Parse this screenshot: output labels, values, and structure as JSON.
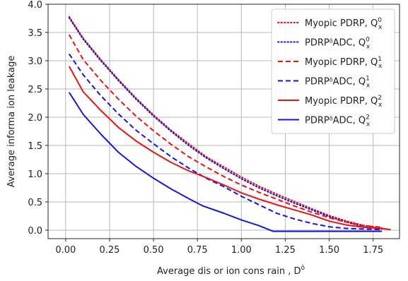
{
  "chart_data": {
    "type": "line",
    "xlabel": "Average dis or ion cons rain , D",
    "xlabel_sup": "ô",
    "ylabel": "Average informa ion leakage",
    "xlim": [
      -0.1,
      1.9
    ],
    "ylim": [
      -0.15,
      4.0
    ],
    "xticks": [
      "0.00",
      "0.25",
      "0.50",
      "0.75",
      "1.00",
      "1.25",
      "1.50",
      "1.75"
    ],
    "xtick_values": [
      0.0,
      0.25,
      0.5,
      0.75,
      1.0,
      1.25,
      1.5,
      1.75
    ],
    "yticks": [
      "0.0",
      "0.5",
      "1.0",
      "1.5",
      "2.0",
      "2.5",
      "3.0",
      "3.5",
      "4.0"
    ],
    "ytick_values": [
      0.0,
      0.5,
      1.0,
      1.5,
      2.0,
      2.5,
      3.0,
      3.5,
      4.0
    ],
    "grid": true,
    "legend_position": "top-right",
    "series": [
      {
        "name": "Myopic PDRP, Q",
        "sub": "x",
        "sup": "0",
        "color": "#ee1111",
        "style": "dotted",
        "x": [
          0.02,
          0.1,
          0.2,
          0.3,
          0.4,
          0.5,
          0.6,
          0.7,
          0.8,
          0.9,
          1.0,
          1.1,
          1.2,
          1.3,
          1.4,
          1.5,
          1.6,
          1.7,
          1.8
        ],
        "y": [
          3.78,
          3.4,
          3.02,
          2.67,
          2.34,
          2.04,
          1.77,
          1.53,
          1.3,
          1.12,
          0.94,
          0.78,
          0.64,
          0.51,
          0.38,
          0.26,
          0.16,
          0.08,
          0.04
        ]
      },
      {
        "name": "PDRP",
        "name_suffix": "ADC, Q",
        "sub": "x",
        "sup": "0",
        "color": "#1515dd",
        "style": "dotted",
        "x": [
          0.02,
          0.1,
          0.2,
          0.3,
          0.4,
          0.5,
          0.6,
          0.7,
          0.8,
          0.9,
          1.0,
          1.1,
          1.2,
          1.3,
          1.4,
          1.5,
          1.6,
          1.7,
          1.8
        ],
        "y": [
          3.76,
          3.38,
          3.0,
          2.65,
          2.32,
          2.02,
          1.75,
          1.5,
          1.28,
          1.09,
          0.91,
          0.75,
          0.61,
          0.48,
          0.36,
          0.24,
          0.14,
          0.06,
          0.02
        ]
      },
      {
        "name": "Myopic PDRP, Q",
        "sub": "x",
        "sup": "1",
        "color": "#ee1111",
        "style": "dashed",
        "x": [
          0.02,
          0.1,
          0.2,
          0.3,
          0.4,
          0.5,
          0.6,
          0.7,
          0.8,
          0.9,
          1.0,
          1.1,
          1.2,
          1.3,
          1.4,
          1.5,
          1.6,
          1.7,
          1.8
        ],
        "y": [
          3.46,
          3.02,
          2.65,
          2.32,
          2.02,
          1.76,
          1.52,
          1.3,
          1.12,
          0.95,
          0.8,
          0.67,
          0.55,
          0.43,
          0.32,
          0.22,
          0.14,
          0.08,
          0.05
        ]
      },
      {
        "name": "PDRP",
        "name_suffix": "ADC, Q",
        "sub": "x",
        "sup": "1",
        "color": "#1515dd",
        "style": "dashed",
        "x": [
          0.02,
          0.1,
          0.2,
          0.3,
          0.4,
          0.5,
          0.6,
          0.7,
          0.8,
          0.9,
          1.0,
          1.1,
          1.2,
          1.3,
          1.4,
          1.5,
          1.6,
          1.7,
          1.8
        ],
        "y": [
          3.12,
          2.75,
          2.38,
          2.06,
          1.77,
          1.53,
          1.3,
          1.1,
          0.92,
          0.77,
          0.6,
          0.45,
          0.3,
          0.2,
          0.12,
          0.06,
          0.03,
          0.02,
          0.01
        ]
      },
      {
        "name": "Myopic PDRP, Q",
        "sub": "x",
        "sup": "2",
        "color": "#ee1111",
        "style": "solid",
        "x": [
          0.02,
          0.1,
          0.2,
          0.3,
          0.4,
          0.5,
          0.6,
          0.7,
          0.8,
          0.9,
          1.0,
          1.1,
          1.2,
          1.3,
          1.4,
          1.5,
          1.6,
          1.7,
          1.8,
          1.85
        ],
        "y": [
          2.9,
          2.45,
          2.12,
          1.82,
          1.58,
          1.38,
          1.2,
          1.05,
          0.93,
          0.8,
          0.66,
          0.55,
          0.45,
          0.36,
          0.27,
          0.16,
          0.09,
          0.05,
          0.03,
          0.01
        ]
      },
      {
        "name": "PDRP",
        "name_suffix": "ADC, Q",
        "sub": "x",
        "sup": "2",
        "color": "#1515dd",
        "style": "solid",
        "x": [
          0.02,
          0.1,
          0.2,
          0.3,
          0.4,
          0.5,
          0.6,
          0.7,
          0.78,
          0.9,
          1.0,
          1.1,
          1.18,
          1.3,
          1.4,
          1.5,
          1.6,
          1.7,
          1.8
        ],
        "y": [
          2.44,
          2.05,
          1.7,
          1.38,
          1.13,
          0.92,
          0.73,
          0.56,
          0.43,
          0.3,
          0.18,
          0.08,
          -0.02,
          -0.02,
          -0.02,
          -0.02,
          -0.02,
          -0.02,
          -0.02
        ]
      }
    ]
  }
}
